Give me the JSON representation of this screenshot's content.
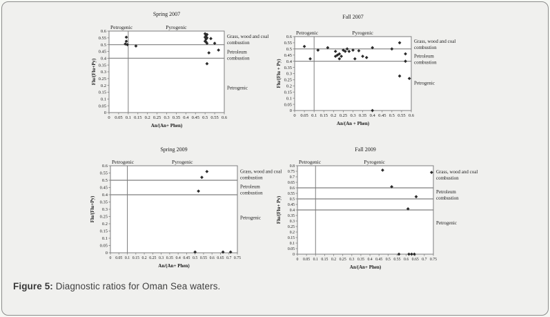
{
  "caption": {
    "label": "Figure 5:",
    "text": " Diagnostic ratios for Oman Sea waters."
  },
  "colors": {
    "marker": "#2b2b2b",
    "line": "#7d7d7d",
    "plot_bg": "#ffffff",
    "text": "#1a1a1a"
  },
  "chart_data": [
    {
      "type": "scatter",
      "title": "Spring 2007",
      "xlabel": "An/(An+ Phen)",
      "ylabel": "Flu/(Flu+Py)",
      "xlim": [
        0,
        0.6
      ],
      "ylim": [
        0,
        0.6
      ],
      "grid": false,
      "legend": "none",
      "xticks": [
        "0",
        "0.05",
        "0.1",
        "0.15",
        "0.2",
        "0.25",
        "0.3",
        "0.35",
        "0.4",
        "0.45",
        "0.5",
        "0.55",
        "0.6"
      ],
      "yticks": [
        "0",
        "0.05",
        "0.1",
        "0.15",
        "0.2",
        "0.25",
        "0.3",
        "0.35",
        "0.4",
        "0.45",
        "0.5",
        "0.55",
        "0.6"
      ],
      "vline": 0.1,
      "hlines": [
        0.5,
        0.4
      ],
      "region_labels": {
        "left": "Petrogenic",
        "right": "Pyrogenic"
      },
      "side_labels": [
        {
          "text": "Grass, wood and coal\ncombustion",
          "y": 0.55
        },
        {
          "text": "Petroleum\ncombustion",
          "y": 0.435
        },
        {
          "text": "Petrogenic",
          "y": 0.17
        }
      ],
      "points": [
        [
          0.09,
          0.555
        ],
        [
          0.09,
          0.525
        ],
        [
          0.085,
          0.505
        ],
        [
          0.095,
          0.5
        ],
        [
          0.14,
          0.49
        ],
        [
          0.5,
          0.58
        ],
        [
          0.51,
          0.575
        ],
        [
          0.505,
          0.565
        ],
        [
          0.5,
          0.555
        ],
        [
          0.51,
          0.55
        ],
        [
          0.53,
          0.545
        ],
        [
          0.505,
          0.54
        ],
        [
          0.5,
          0.525
        ],
        [
          0.505,
          0.52
        ],
        [
          0.51,
          0.51
        ],
        [
          0.55,
          0.51
        ],
        [
          0.52,
          0.44
        ],
        [
          0.57,
          0.46
        ],
        [
          0.51,
          0.36
        ]
      ]
    },
    {
      "type": "scatter",
      "title": "Fall 2007",
      "xlabel": "An/(An + Phen)",
      "ylabel": "Flu/(Flu + Py)",
      "xlim": [
        0,
        0.6
      ],
      "ylim": [
        0,
        0.6
      ],
      "grid": false,
      "legend": "none",
      "xticks": [
        "0",
        "0.05",
        "0.1",
        "0.15",
        "0.2",
        "0.25",
        "0.3",
        "0.35",
        "0.4",
        "0.45",
        "0.5",
        "0.55",
        "0.6"
      ],
      "yticks": [
        "0",
        "0.05",
        "0.1",
        "0.15",
        "0.2",
        "0.25",
        "0.3",
        "0.35",
        "0.4",
        "0.45",
        "0.5",
        "0.55",
        "0.6"
      ],
      "vline": 0.1,
      "hlines": [
        0.5,
        0.4
      ],
      "region_labels": {
        "left": "Petrogenic",
        "right": "Pyrogenic"
      },
      "side_labels": [
        {
          "text": "Grass, wood and coal\ncombustion",
          "y": 0.55
        },
        {
          "text": "Petroleum\ncombustion",
          "y": 0.43
        },
        {
          "text": "Petrogenic",
          "y": 0.21
        }
      ],
      "points": [
        [
          0.05,
          0.52
        ],
        [
          0.08,
          0.42
        ],
        [
          0.12,
          0.49
        ],
        [
          0.17,
          0.51
        ],
        [
          0.21,
          0.48
        ],
        [
          0.21,
          0.44
        ],
        [
          0.22,
          0.45
        ],
        [
          0.23,
          0.42
        ],
        [
          0.23,
          0.46
        ],
        [
          0.24,
          0.44
        ],
        [
          0.25,
          0.49
        ],
        [
          0.26,
          0.48
        ],
        [
          0.27,
          0.5
        ],
        [
          0.28,
          0.48
        ],
        [
          0.3,
          0.49
        ],
        [
          0.31,
          0.42
        ],
        [
          0.33,
          0.485
        ],
        [
          0.35,
          0.44
        ],
        [
          0.37,
          0.43
        ],
        [
          0.4,
          0.51
        ],
        [
          0.4,
          0
        ],
        [
          0.5,
          0.5
        ],
        [
          0.54,
          0.55
        ],
        [
          0.54,
          0.28
        ],
        [
          0.57,
          0.46
        ],
        [
          0.57,
          0.4
        ],
        [
          0.59,
          0.26
        ]
      ]
    },
    {
      "type": "scatter",
      "title": "Spring 2009",
      "xlabel": "An/(An+ Phen)",
      "ylabel": "Flu/(Flu+Py)",
      "xlim": [
        0,
        0.75
      ],
      "ylim": [
        0,
        0.6
      ],
      "grid": false,
      "legend": "none",
      "xticks": [
        "0",
        "0.05",
        "0.1",
        "0.15",
        "0.2",
        "0.25",
        "0.3",
        "0.35",
        "0.4",
        "0.45",
        "0.5",
        "0.55",
        "0.6",
        "0.65",
        "0.7",
        "0.75"
      ],
      "yticks": [
        "0",
        "0.05",
        "0.1",
        "0.15",
        "0.2",
        "0.25",
        "0.3",
        "0.35",
        "0.4",
        "0.45",
        "0.5",
        "0.55",
        "0.6"
      ],
      "vline": 0.1,
      "hlines": [
        0.5,
        0.4
      ],
      "region_labels": {
        "left": "Petrogenic",
        "right": "Pyrogenic"
      },
      "side_labels": [
        {
          "text": "Grass, wood and coal\ncombustion",
          "y": 0.55
        },
        {
          "text": "Petroleum\ncombustion",
          "y": 0.445
        },
        {
          "text": "Petrogenic",
          "y": 0.23
        }
      ],
      "points": [
        [
          0.57,
          0.56
        ],
        [
          0.54,
          0.52
        ],
        [
          0.52,
          0.425
        ],
        [
          0.5,
          0.005
        ],
        [
          0.665,
          0.005
        ],
        [
          0.71,
          0.005
        ]
      ]
    },
    {
      "type": "scatter",
      "title": "Fall 2009",
      "xlabel": "An/(An+ Phen)",
      "ylabel": "Flu/(Flu+ Py)",
      "xlim": [
        0,
        0.75
      ],
      "ylim": [
        0,
        0.8
      ],
      "grid": false,
      "legend": "none",
      "xticks": [
        "0",
        "0.05",
        "0.1",
        "0.15",
        "0.2",
        "0.25",
        "0.3",
        "0.35",
        "0.4",
        "0.45",
        "0.5",
        "0.55",
        "0.6",
        "0.65",
        "0.7",
        "0.75"
      ],
      "yticks": [
        "0",
        "0.05",
        "0.1",
        "0.15",
        "0.2",
        "0.25",
        "0.3",
        "0.35",
        "0.4",
        "0.45",
        "0.5",
        "0.55",
        "0.6",
        "0.65",
        "0.7",
        "0.75",
        "0.8"
      ],
      "vline": 0.1,
      "hlines": [
        0.6,
        0.5,
        0.4
      ],
      "region_labels": {
        "left": "Petrogenic",
        "right": "Pyrogenic"
      },
      "side_labels": [
        {
          "text": "Grass, wood and coal\ncombustion",
          "y": 0.73
        },
        {
          "text": "Petroleum\ncombustion",
          "y": 0.55
        },
        {
          "text": "Petrogenic",
          "y": 0.27
        }
      ],
      "points": [
        [
          0.47,
          0.76
        ],
        [
          0.74,
          0.74
        ],
        [
          0.52,
          0.61
        ],
        [
          0.655,
          0.52
        ],
        [
          0.61,
          0.41
        ],
        [
          0.56,
          0
        ],
        [
          0.615,
          0
        ],
        [
          0.63,
          0
        ],
        [
          0.645,
          0
        ]
      ]
    }
  ]
}
